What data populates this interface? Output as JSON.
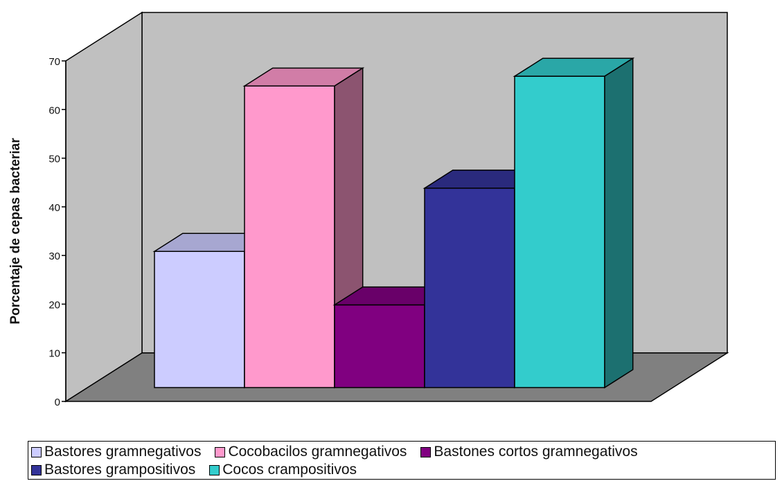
{
  "chart_data": {
    "type": "bar",
    "ylabel": "Porcentaje de cepas bacteriar",
    "xlabel": "",
    "ylim": [
      0,
      70
    ],
    "yticks": [
      0,
      10,
      20,
      30,
      40,
      50,
      60,
      70
    ],
    "grid": false,
    "legend_position": "bottom",
    "style": "3d-column",
    "series": [
      {
        "name": "Bastores gramnegativos",
        "value": 28,
        "color": "#ccccff"
      },
      {
        "name": "Cocobacilos gramnegativos",
        "value": 62,
        "color": "#ff99cc"
      },
      {
        "name": "Bastones cortos gramnegativos",
        "value": 17,
        "color": "#800080"
      },
      {
        "name": "Bastores grampositivos",
        "value": 41,
        "color": "#333399"
      },
      {
        "name": "Cocos crampositivos",
        "value": 64,
        "color": "#33cccc"
      }
    ],
    "colors": {
      "wall": "#c0c0c0",
      "floor": "#808080"
    }
  }
}
